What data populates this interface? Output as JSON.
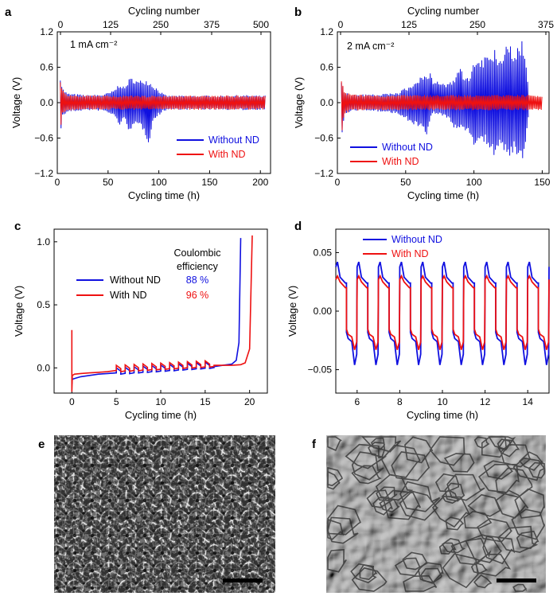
{
  "colors": {
    "without_nd": "#1010e0",
    "with_nd": "#ee1111",
    "axis": "#000000"
  },
  "panels": {
    "a": {
      "label": "a"
    },
    "b": {
      "label": "b"
    },
    "c": {
      "label": "c"
    },
    "d": {
      "label": "d"
    },
    "e": {
      "label": "e"
    },
    "f": {
      "label": "f"
    }
  },
  "chart_data": [
    {
      "panel": "a",
      "type": "line",
      "annotation": "1 mA cm⁻²",
      "xlabel": "Cycling time (h)",
      "ylabel": "Voltage (V)",
      "x2label": "Cycling number",
      "xlim": [
        0,
        210
      ],
      "ylim": [
        -1.2,
        1.2
      ],
      "xticks": [
        0,
        50,
        100,
        150,
        200
      ],
      "yticks": [
        -1.2,
        -0.6,
        0.0,
        0.6,
        1.2
      ],
      "x2ticks": [
        0,
        125,
        250,
        375,
        500
      ],
      "legend": "bottom-right",
      "series": [
        {
          "name": "Without ND",
          "color": "#1010e0",
          "envelope": {
            "x": [
              3,
              5,
              10,
              30,
              45,
              55,
              62,
              66,
              70,
              75,
              80,
              85,
              90,
              95,
              100,
              105,
              110,
              120,
              140,
              160,
              180,
              200,
              205
            ],
            "upper": [
              0.5,
              0.25,
              0.16,
              0.13,
              0.14,
              0.2,
              0.35,
              0.25,
              0.4,
              0.44,
              0.36,
              0.42,
              0.38,
              0.3,
              0.22,
              0.14,
              0.12,
              0.12,
              0.12,
              0.12,
              0.13,
              0.12,
              0.12
            ],
            "lower": [
              -0.55,
              -0.25,
              -0.16,
              -0.13,
              -0.14,
              -0.22,
              -0.4,
              -0.3,
              -0.46,
              -0.44,
              -0.4,
              -0.48,
              -0.7,
              -0.3,
              -0.22,
              -0.14,
              -0.12,
              -0.12,
              -0.12,
              -0.12,
              -0.13,
              -0.12,
              -0.12
            ]
          }
        },
        {
          "name": "With ND",
          "color": "#ee1111",
          "envelope": {
            "x": [
              3,
              5,
              10,
              30,
              60,
              100,
              150,
              200,
              205
            ],
            "upper": [
              0.46,
              0.22,
              0.14,
              0.12,
              0.12,
              0.12,
              0.12,
              0.12,
              0.12
            ],
            "lower": [
              -0.55,
              -0.22,
              -0.14,
              -0.12,
              -0.12,
              -0.12,
              -0.12,
              -0.12,
              -0.12
            ]
          }
        }
      ]
    },
    {
      "panel": "b",
      "type": "line",
      "annotation": "2 mA cm⁻²",
      "xlabel": "Cycling time (h)",
      "ylabel": "Voltage (V)",
      "x2label": "Cycling number",
      "xlim": [
        0,
        155
      ],
      "ylim": [
        -1.2,
        1.2
      ],
      "xticks": [
        0,
        50,
        100,
        150
      ],
      "yticks": [
        -1.2,
        -0.6,
        0.0,
        0.6,
        1.2
      ],
      "x2ticks": [
        0,
        125,
        250,
        375
      ],
      "legend": "bottom-left",
      "series": [
        {
          "name": "Without ND",
          "color": "#1010e0",
          "envelope": {
            "x": [
              3,
              5,
              10,
              30,
              45,
              55,
              62,
              66,
              68,
              70,
              75,
              80,
              85,
              90,
              95,
              100,
              105,
              110,
              115,
              120,
              125,
              130,
              135,
              138,
              140
            ],
            "upper": [
              0.45,
              0.2,
              0.14,
              0.14,
              0.18,
              0.32,
              0.45,
              0.52,
              0.55,
              0.4,
              0.35,
              0.32,
              0.38,
              0.6,
              0.42,
              0.66,
              0.72,
              0.85,
              0.9,
              0.75,
              1.05,
              0.8,
              1.12,
              0.7,
              0.3
            ],
            "lower": [
              -0.82,
              -0.22,
              -0.14,
              -0.15,
              -0.2,
              -0.38,
              -0.45,
              -0.55,
              -0.3,
              -0.18,
              -0.2,
              -0.25,
              -0.42,
              -0.45,
              -0.52,
              -0.72,
              -0.62,
              -0.72,
              -0.95,
              -0.78,
              -1.0,
              -0.82,
              -1.1,
              -0.7,
              -0.3
            ]
          }
        },
        {
          "name": "With ND",
          "color": "#ee1111",
          "envelope": {
            "x": [
              3,
              5,
              10,
              30,
              60,
              100,
              130,
              150
            ],
            "upper": [
              0.48,
              0.2,
              0.14,
              0.13,
              0.13,
              0.13,
              0.13,
              0.13
            ],
            "lower": [
              -0.75,
              -0.2,
              -0.14,
              -0.13,
              -0.13,
              -0.13,
              -0.13,
              -0.13
            ]
          }
        }
      ]
    },
    {
      "panel": "c",
      "type": "line",
      "xlabel": "Cycling time (h)",
      "ylabel": "Voltage (V)",
      "xlim": [
        -2,
        22
      ],
      "ylim": [
        -0.2,
        1.1
      ],
      "xticks": [
        0,
        5,
        10,
        15,
        20
      ],
      "yticks": [
        0.0,
        0.5,
        1.0
      ],
      "legend": "left",
      "legend_title": "Coulombic\nefficiency",
      "series": [
        {
          "name": "Without ND",
          "color": "#1010e0",
          "coulombic_efficiency": "88 %",
          "x": [
            0,
            0.05,
            0.5,
            1,
            2,
            3,
            4,
            5,
            16,
            17,
            18,
            18.5,
            18.8,
            19.0
          ],
          "y": [
            -0.13,
            -0.09,
            -0.08,
            -0.07,
            -0.06,
            -0.05,
            -0.045,
            -0.04,
            0.01,
            0.02,
            0.03,
            0.06,
            0.2,
            1.03
          ]
        },
        {
          "name": "With ND",
          "color": "#ee1111",
          "coulombic_efficiency": "96 %",
          "x": [
            0,
            0,
            0.05,
            0.3,
            1,
            2,
            3,
            4,
            5,
            16,
            17,
            18,
            19,
            19.5,
            20,
            20.3
          ],
          "y": [
            0.3,
            -0.19,
            -0.06,
            -0.05,
            -0.045,
            -0.04,
            -0.035,
            -0.03,
            -0.02,
            0.02,
            0.02,
            0.02,
            0.025,
            0.04,
            0.15,
            1.05
          ]
        }
      ],
      "cycling_window": {
        "x_start": 5,
        "x_end": 16,
        "cycles": 11,
        "amplitude": 0.04
      }
    },
    {
      "panel": "d",
      "type": "line",
      "xlabel": "Cycling time (h)",
      "ylabel": "Voltage (V)",
      "xlim": [
        5,
        15
      ],
      "ylim": [
        -0.07,
        0.07
      ],
      "xticks": [
        6,
        8,
        10,
        12,
        14
      ],
      "yticks": [
        -0.05,
        0.0,
        0.05
      ],
      "legend": "top",
      "series": [
        {
          "name": "Without ND",
          "color": "#1010e0",
          "cycle_period_h": 1.0,
          "upper_peak": 0.042,
          "upper_plateau": 0.024,
          "lower_peak": -0.046,
          "lower_plateau": -0.026
        },
        {
          "name": "With ND",
          "color": "#ee1111",
          "cycle_period_h": 1.0,
          "upper_peak": 0.03,
          "upper_plateau": 0.02,
          "lower_peak": -0.033,
          "lower_plateau": -0.022
        }
      ]
    }
  ]
}
